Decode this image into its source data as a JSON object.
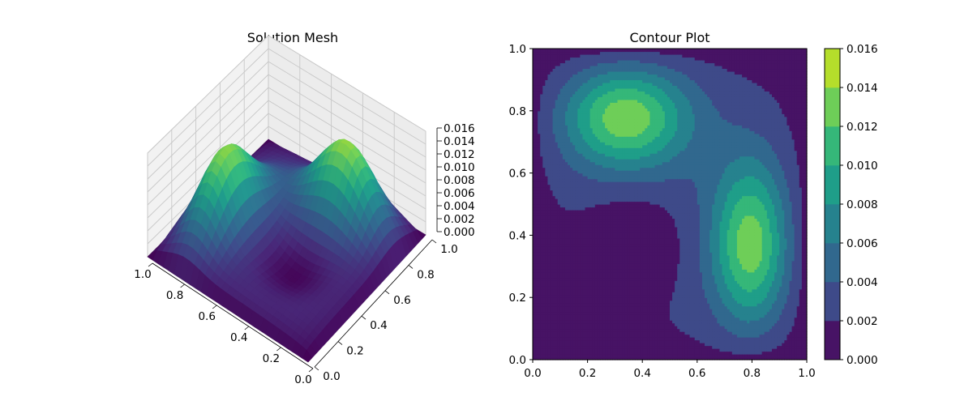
{
  "chart_data": [
    {
      "type": "surface3d",
      "title": "Solution Mesh",
      "xlabel": "",
      "ylabel": "",
      "zlabel": "",
      "colormap": "viridis",
      "x_ticks": [
        "0.0",
        "0.2",
        "0.4",
        "0.6",
        "0.8",
        "1.0"
      ],
      "y_ticks": [
        "0.0",
        "0.2",
        "0.4",
        "0.6",
        "0.8",
        "1.0"
      ],
      "z_ticks": [
        "0.000",
        "0.002",
        "0.004",
        "0.006",
        "0.008",
        "0.010",
        "0.012",
        "0.014",
        "0.016"
      ],
      "xlim": [
        0,
        1
      ],
      "ylim": [
        0,
        1
      ],
      "zlim": [
        0,
        0.016
      ],
      "peaks": [
        {
          "x": 0.32,
          "y": 0.8,
          "z": 0.0162
        },
        {
          "x": 0.81,
          "y": 0.35,
          "z": 0.0162
        }
      ],
      "trough": {
        "x": 0.36,
        "y": 0.37,
        "z": 0.0012
      }
    },
    {
      "type": "contourf",
      "title": "Contour Plot",
      "xlabel": "",
      "ylabel": "",
      "xlim": [
        0,
        1
      ],
      "ylim": [
        0,
        1
      ],
      "x_ticks": [
        "0.0",
        "0.2",
        "0.4",
        "0.6",
        "0.8",
        "1.0"
      ],
      "y_ticks": [
        "0.0",
        "0.2",
        "0.4",
        "0.6",
        "0.8",
        "1.0"
      ],
      "levels": [
        0,
        0.002,
        0.004,
        0.006,
        0.008,
        0.01,
        0.012,
        0.014,
        0.016
      ],
      "level_colors": [
        "#471365",
        "#3e4a89",
        "#31688e",
        "#26828e",
        "#1f9e89",
        "#35b779",
        "#6ece58",
        "#b5de2b",
        "#dde318"
      ],
      "colorbar_ticks": [
        "0.000",
        "0.002",
        "0.004",
        "0.006",
        "0.008",
        "0.010",
        "0.012",
        "0.014",
        "0.016"
      ],
      "peaks": [
        {
          "x": 0.32,
          "y": 0.8,
          "z": 0.0162
        },
        {
          "x": 0.81,
          "y": 0.35,
          "z": 0.0162
        }
      ],
      "trough": {
        "x": 0.36,
        "y": 0.37,
        "z": 0.0012
      }
    }
  ]
}
